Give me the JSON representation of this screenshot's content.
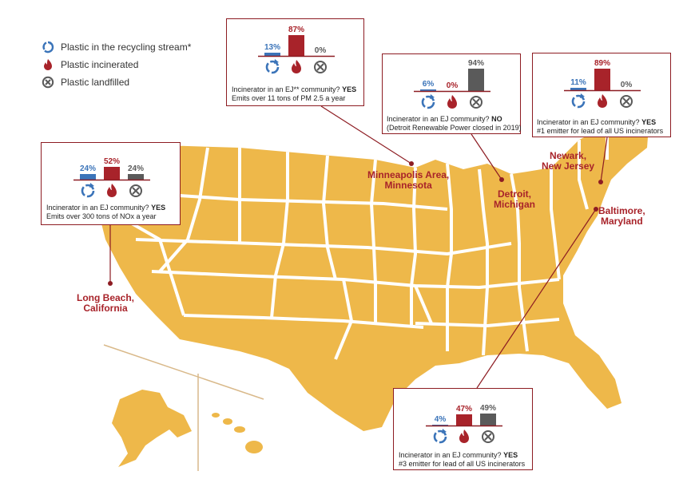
{
  "legend": {
    "recycled": "Plastic in the recycling stream*",
    "incinerated": "Plastic incinerated",
    "landfilled": "Plastic landfilled"
  },
  "colors": {
    "recycle": "#3b74b9",
    "incinerate": "#a8232a",
    "landfill": "#5a5a5a",
    "map_fill": "#eeb84a",
    "box_border": "#8d1c22",
    "city_label": "#a8232a"
  },
  "icons": [
    "recycle-arrows-icon",
    "flame-icon",
    "landfill-x-circle-icon"
  ],
  "locations": [
    {
      "id": "long-beach",
      "city_line1": "Long Beach,",
      "city_line2": "California",
      "values": {
        "recycled": 24,
        "incinerated": 52,
        "landfilled": 24
      },
      "recycled_label": "24%",
      "incinerated_label": "52%",
      "landfilled_label": "24%",
      "question": "Incinerator in an EJ community?",
      "answer": "YES",
      "note": "Emits over 300 tons of NOx a year"
    },
    {
      "id": "minneapolis",
      "city_line1": "Minneapolis Area,",
      "city_line2": "Minnesota",
      "values": {
        "recycled": 13,
        "incinerated": 87,
        "landfilled": 0
      },
      "recycled_label": "13%",
      "incinerated_label": "87%",
      "landfilled_label": "0%",
      "question": "Incinerator in an EJ** community?",
      "answer": "YES",
      "note": "Emits over 11 tons of PM 2.5 a year"
    },
    {
      "id": "detroit",
      "city_line1": "Detroit,",
      "city_line2": "Michigan",
      "values": {
        "recycled": 6,
        "incinerated": 0,
        "landfilled": 94
      },
      "recycled_label": "6%",
      "incinerated_label": "0%",
      "landfilled_label": "94%",
      "question": "Incinerator in an EJ community?",
      "answer": "NO",
      "note": "(Detroit Renewable Power closed in 2019)"
    },
    {
      "id": "newark",
      "city_line1": "Newark,",
      "city_line2": "New Jersey",
      "values": {
        "recycled": 11,
        "incinerated": 89,
        "landfilled": 0
      },
      "recycled_label": "11%",
      "incinerated_label": "89%",
      "landfilled_label": "0%",
      "question": "Incinerator in an EJ community?",
      "answer": "YES",
      "note": "#1 emitter for lead of all US incinerators"
    },
    {
      "id": "baltimore",
      "city_line1": "Baltimore,",
      "city_line2": "Maryland",
      "values": {
        "recycled": 4,
        "incinerated": 47,
        "landfilled": 49
      },
      "recycled_label": "4%",
      "incinerated_label": "47%",
      "landfilled_label": "49%",
      "question": "Incinerator in an EJ community?",
      "answer": "YES",
      "note": "#3 emitter for lead of all  US incinerators"
    }
  ]
}
